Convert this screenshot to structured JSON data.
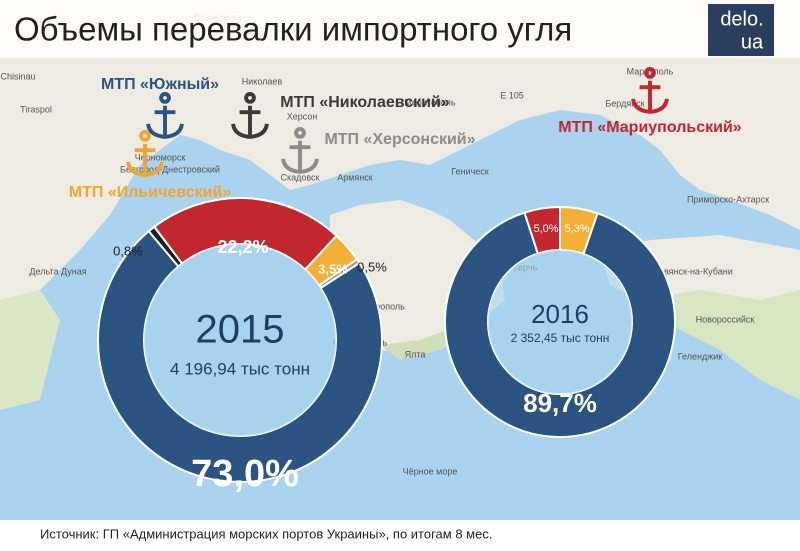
{
  "title": "Объемы перевалки импортного угля",
  "logo": {
    "line1": "delo.",
    "line2": "ua"
  },
  "ports": [
    {
      "label": "МТП «Южный»",
      "color": "#2b5482"
    },
    {
      "label": "МТП «Николаевский»",
      "color": "#3a3a3a"
    },
    {
      "label": "МТП «Херсонский»",
      "color": "#8c8c8c"
    },
    {
      "label": "МТП «Мариупольский»",
      "color": "#c1272d"
    },
    {
      "label": "МТП «Ильичевский»",
      "color": "#f2a531"
    }
  ],
  "map_labels": [
    "Вознесенск",
    "Николаев",
    "Херсон",
    "Мелитополь",
    "Мариуполь",
    "Бердянск",
    "Черноморск",
    "Белгород-Днестровский",
    "Скадовск",
    "Армянск",
    "Геническ",
    "Симферополь",
    "Севастополь",
    "Ялта",
    "Керчь",
    "Новороссийск",
    "Геленджик",
    "Славянск-на-Кубани",
    "Приморско-Ахтарск",
    "Дельта Дуная",
    "Чёрное море",
    "Chisinau",
    "Tiraspol",
    "E 105"
  ],
  "source": "Источник: ГП «Администрация морских портов Украины», по итогам 8 мес.",
  "chart_data": [
    {
      "type": "pie",
      "title": "2015",
      "subtitle": "4 196,94 тыс тонн",
      "values": [
        0.8,
        22.2,
        3.5,
        0.5,
        73.0
      ],
      "value_labels": [
        "0,8%",
        "22,2%",
        "3,5%",
        "0,5%",
        "73,0%"
      ],
      "colors": [
        "#1e1e1e",
        "#c1272d",
        "#f2b134",
        "#9a9a9a",
        "#2b5482"
      ]
    },
    {
      "type": "pie",
      "title": "2016",
      "subtitle": "2 352,45 тыс тонн",
      "values": [
        5.0,
        5.3,
        89.7
      ],
      "value_labels": [
        "5,0%",
        "5,3%",
        "89,7%"
      ],
      "colors": [
        "#c1272d",
        "#f2b134",
        "#2b5482"
      ]
    }
  ]
}
